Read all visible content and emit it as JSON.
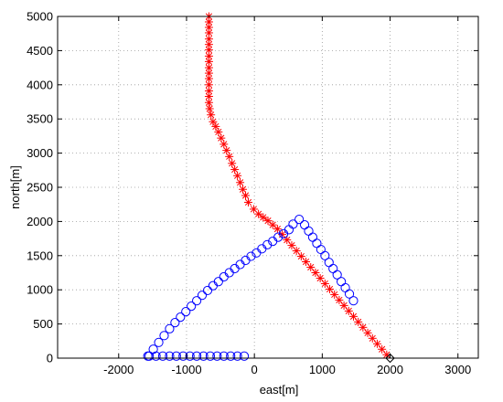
{
  "chart_data": {
    "type": "scatter",
    "title": "",
    "xlabel": "east[m]",
    "ylabel": "north[m]",
    "xlim": [
      -2900,
      3300
    ],
    "ylim": [
      0,
      5000
    ],
    "xticks": [
      -2000,
      -1000,
      0,
      1000,
      2000,
      3000
    ],
    "yticks": [
      0,
      500,
      1000,
      1500,
      2000,
      2500,
      3000,
      3500,
      4000,
      4500,
      5000
    ],
    "grid": true,
    "series": [
      {
        "marker": "asterisk",
        "color": "#ff0000",
        "x": [
          1950,
          1880,
          1810,
          1740,
          1670,
          1600,
          1530,
          1460,
          1390,
          1320,
          1250,
          1180,
          1110,
          1040,
          970,
          900,
          830,
          760,
          690,
          620,
          550,
          480,
          410,
          340,
          270,
          200,
          130,
          60,
          -10,
          -90,
          -130,
          -170,
          -210,
          -250,
          -290,
          -330,
          -370,
          -410,
          -450,
          -490,
          -530,
          -570,
          -610,
          -640,
          -660,
          -670,
          -670,
          -670,
          -670,
          -670,
          -670,
          -670,
          -670,
          -670,
          -670,
          -670,
          -670,
          -670,
          -670,
          -670,
          -670
        ],
        "y": [
          50,
          130,
          210,
          290,
          370,
          450,
          530,
          610,
          690,
          770,
          850,
          930,
          1010,
          1090,
          1170,
          1250,
          1330,
          1410,
          1490,
          1570,
          1650,
          1730,
          1810,
          1890,
          1950,
          2010,
          2060,
          2110,
          2180,
          2280,
          2380,
          2470,
          2570,
          2670,
          2760,
          2850,
          2950,
          3040,
          3130,
          3220,
          3310,
          3390,
          3460,
          3560,
          3650,
          3740,
          3830,
          3910,
          4000,
          4090,
          4170,
          4250,
          4340,
          4420,
          4510,
          4590,
          4670,
          4760,
          4840,
          4920,
          5000
        ]
      },
      {
        "marker": "circle",
        "color": "#0000ff",
        "x": [
          -1550,
          -1450,
          -1350,
          -1250,
          -1150,
          -1050,
          -950,
          -850,
          -750,
          -650,
          -550,
          -450,
          -350,
          -250,
          -150,
          -1570,
          -1490,
          -1410,
          -1330,
          -1250,
          -1170,
          -1090,
          -1010,
          -930,
          -850,
          -770,
          -690,
          -610,
          -530,
          -450,
          -370,
          -290,
          -210,
          -130,
          -50,
          30,
          110,
          190,
          270,
          350,
          430,
          510,
          570,
          660,
          740,
          800,
          860,
          920,
          980,
          1040,
          1100,
          1160,
          1220,
          1280,
          1340,
          1400,
          1460
        ],
        "y": [
          30,
          30,
          30,
          30,
          30,
          30,
          30,
          30,
          30,
          30,
          30,
          30,
          30,
          30,
          30,
          30,
          130,
          230,
          330,
          430,
          520,
          600,
          680,
          760,
          840,
          920,
          990,
          1060,
          1120,
          1190,
          1250,
          1310,
          1370,
          1430,
          1490,
          1540,
          1600,
          1660,
          1710,
          1770,
          1820,
          1880,
          1960,
          2030,
          1950,
          1860,
          1770,
          1680,
          1590,
          1500,
          1400,
          1310,
          1220,
          1120,
          1030,
          940,
          840
        ]
      },
      {
        "marker": "diamond",
        "color": "#000000",
        "x": [
          2000
        ],
        "y": [
          0
        ]
      }
    ]
  }
}
